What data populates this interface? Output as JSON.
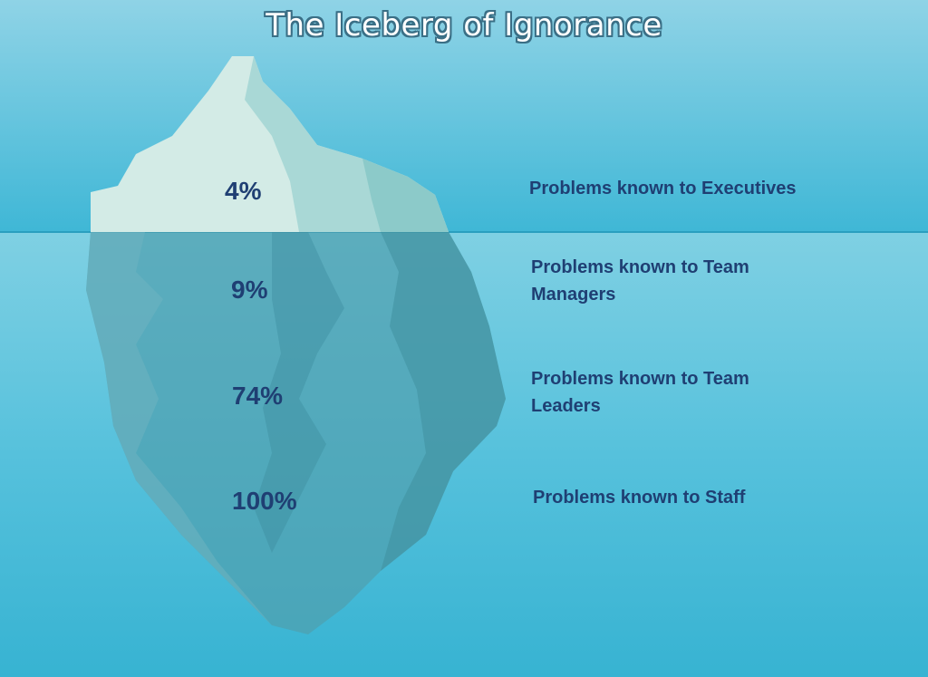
{
  "title": "The Iceberg of Ignorance",
  "colors": {
    "sky_top": "#8fd3e6",
    "sky_bottom": "#3fb7d6",
    "water_top": "#7fd0e3",
    "water_bottom": "#37b3d2",
    "ice_light": "#d3ebe6",
    "ice_mid": "#a9d8d6",
    "ice_under": "#4f9fae",
    "ice_under_dark": "#3f8f9f",
    "text": "#1f3f73"
  },
  "levels": [
    {
      "percent": "4%",
      "label": "Problems known to Executives"
    },
    {
      "percent": "9%",
      "label": "Problems known to Team Managers"
    },
    {
      "percent": "74%",
      "label": "Problems known to Team Leaders"
    },
    {
      "percent": "100%",
      "label": "Problems known to Staff"
    }
  ]
}
